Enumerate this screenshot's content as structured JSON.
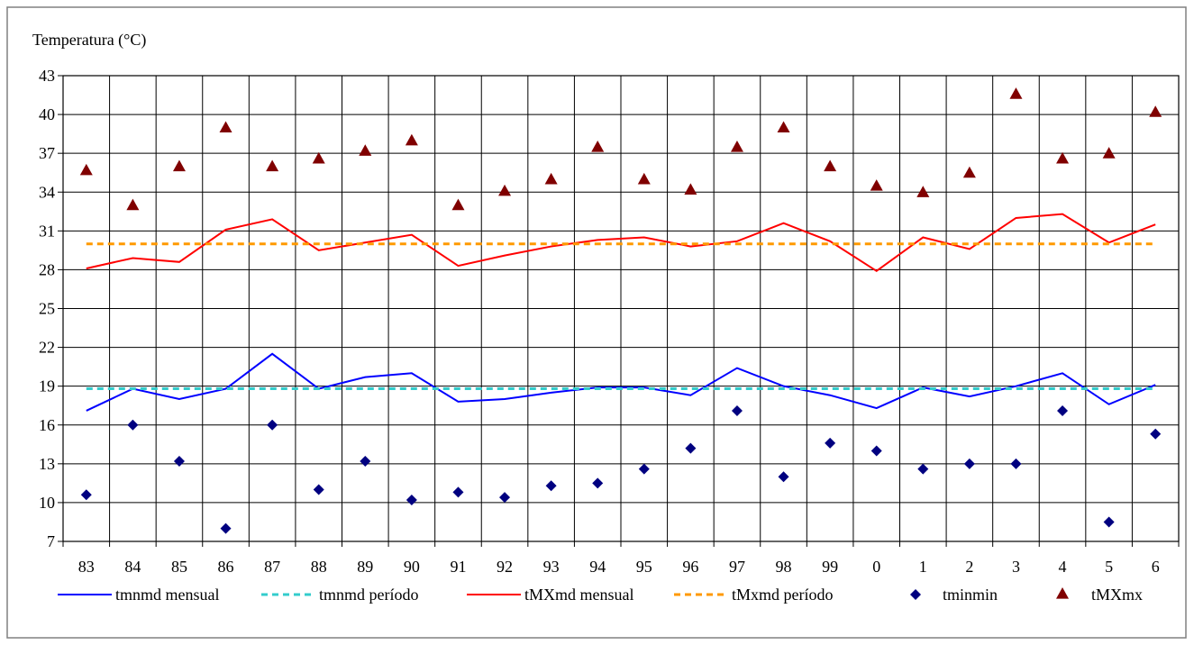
{
  "chart_data": {
    "type": "line",
    "ylabel": "Temperatura (°C)",
    "ylim": [
      7,
      43
    ],
    "ytick_step": 3,
    "grid": true,
    "legend_position": "bottom",
    "categories": [
      "83",
      "84",
      "85",
      "86",
      "87",
      "88",
      "89",
      "90",
      "91",
      "92",
      "93",
      "94",
      "95",
      "96",
      "97",
      "98",
      "99",
      "0",
      "1",
      "2",
      "3",
      "4",
      "5",
      "6"
    ],
    "series": [
      {
        "name": "tmnmd mensual",
        "style": "line",
        "color": "#0000FF",
        "values": [
          17.1,
          18.8,
          18.0,
          18.8,
          21.5,
          18.8,
          19.7,
          20.0,
          17.8,
          18.0,
          18.5,
          18.9,
          18.9,
          18.3,
          20.4,
          19.0,
          18.3,
          17.3,
          18.9,
          18.2,
          19.0,
          20.0,
          17.6,
          19.1
        ]
      },
      {
        "name": "tmnmd período",
        "style": "dash",
        "color": "#33CCCC",
        "values": [
          18.8,
          18.8,
          18.8,
          18.8,
          18.8,
          18.8,
          18.8,
          18.8,
          18.8,
          18.8,
          18.8,
          18.8,
          18.8,
          18.8,
          18.8,
          18.8,
          18.8,
          18.8,
          18.8,
          18.8,
          18.8,
          18.8,
          18.8,
          18.8
        ]
      },
      {
        "name": "tMXmd mensual",
        "style": "line",
        "color": "#FF0000",
        "values": [
          28.1,
          28.9,
          28.6,
          31.1,
          31.9,
          29.5,
          30.1,
          30.7,
          28.3,
          29.1,
          29.8,
          30.3,
          30.5,
          29.8,
          30.2,
          31.6,
          30.2,
          27.9,
          30.5,
          29.6,
          32.0,
          32.3,
          30.1,
          31.5
        ]
      },
      {
        "name": "tMxmd período",
        "style": "dash",
        "color": "#FF9900",
        "values": [
          30.0,
          30.0,
          30.0,
          30.0,
          30.0,
          30.0,
          30.0,
          30.0,
          30.0,
          30.0,
          30.0,
          30.0,
          30.0,
          30.0,
          30.0,
          30.0,
          30.0,
          30.0,
          30.0,
          30.0,
          30.0,
          30.0,
          30.0,
          30.0
        ]
      },
      {
        "name": "tminmin",
        "style": "diamond",
        "color": "#000080",
        "values": [
          10.6,
          16.0,
          13.2,
          8.0,
          16.0,
          11.0,
          13.2,
          10.2,
          10.8,
          10.4,
          11.3,
          11.5,
          12.6,
          14.2,
          17.1,
          12.0,
          14.6,
          14.0,
          12.6,
          13.0,
          13.0,
          17.1,
          8.5,
          15.3
        ]
      },
      {
        "name": "tMXmx",
        "style": "triangle",
        "color": "#800000",
        "values": [
          35.7,
          33.0,
          36.0,
          39.0,
          36.0,
          36.6,
          37.2,
          38.0,
          33.0,
          34.1,
          35.0,
          37.5,
          35.0,
          34.2,
          37.5,
          39.0,
          36.0,
          34.5,
          34.0,
          35.5,
          41.6,
          36.6,
          37.0,
          40.2
        ]
      }
    ]
  }
}
